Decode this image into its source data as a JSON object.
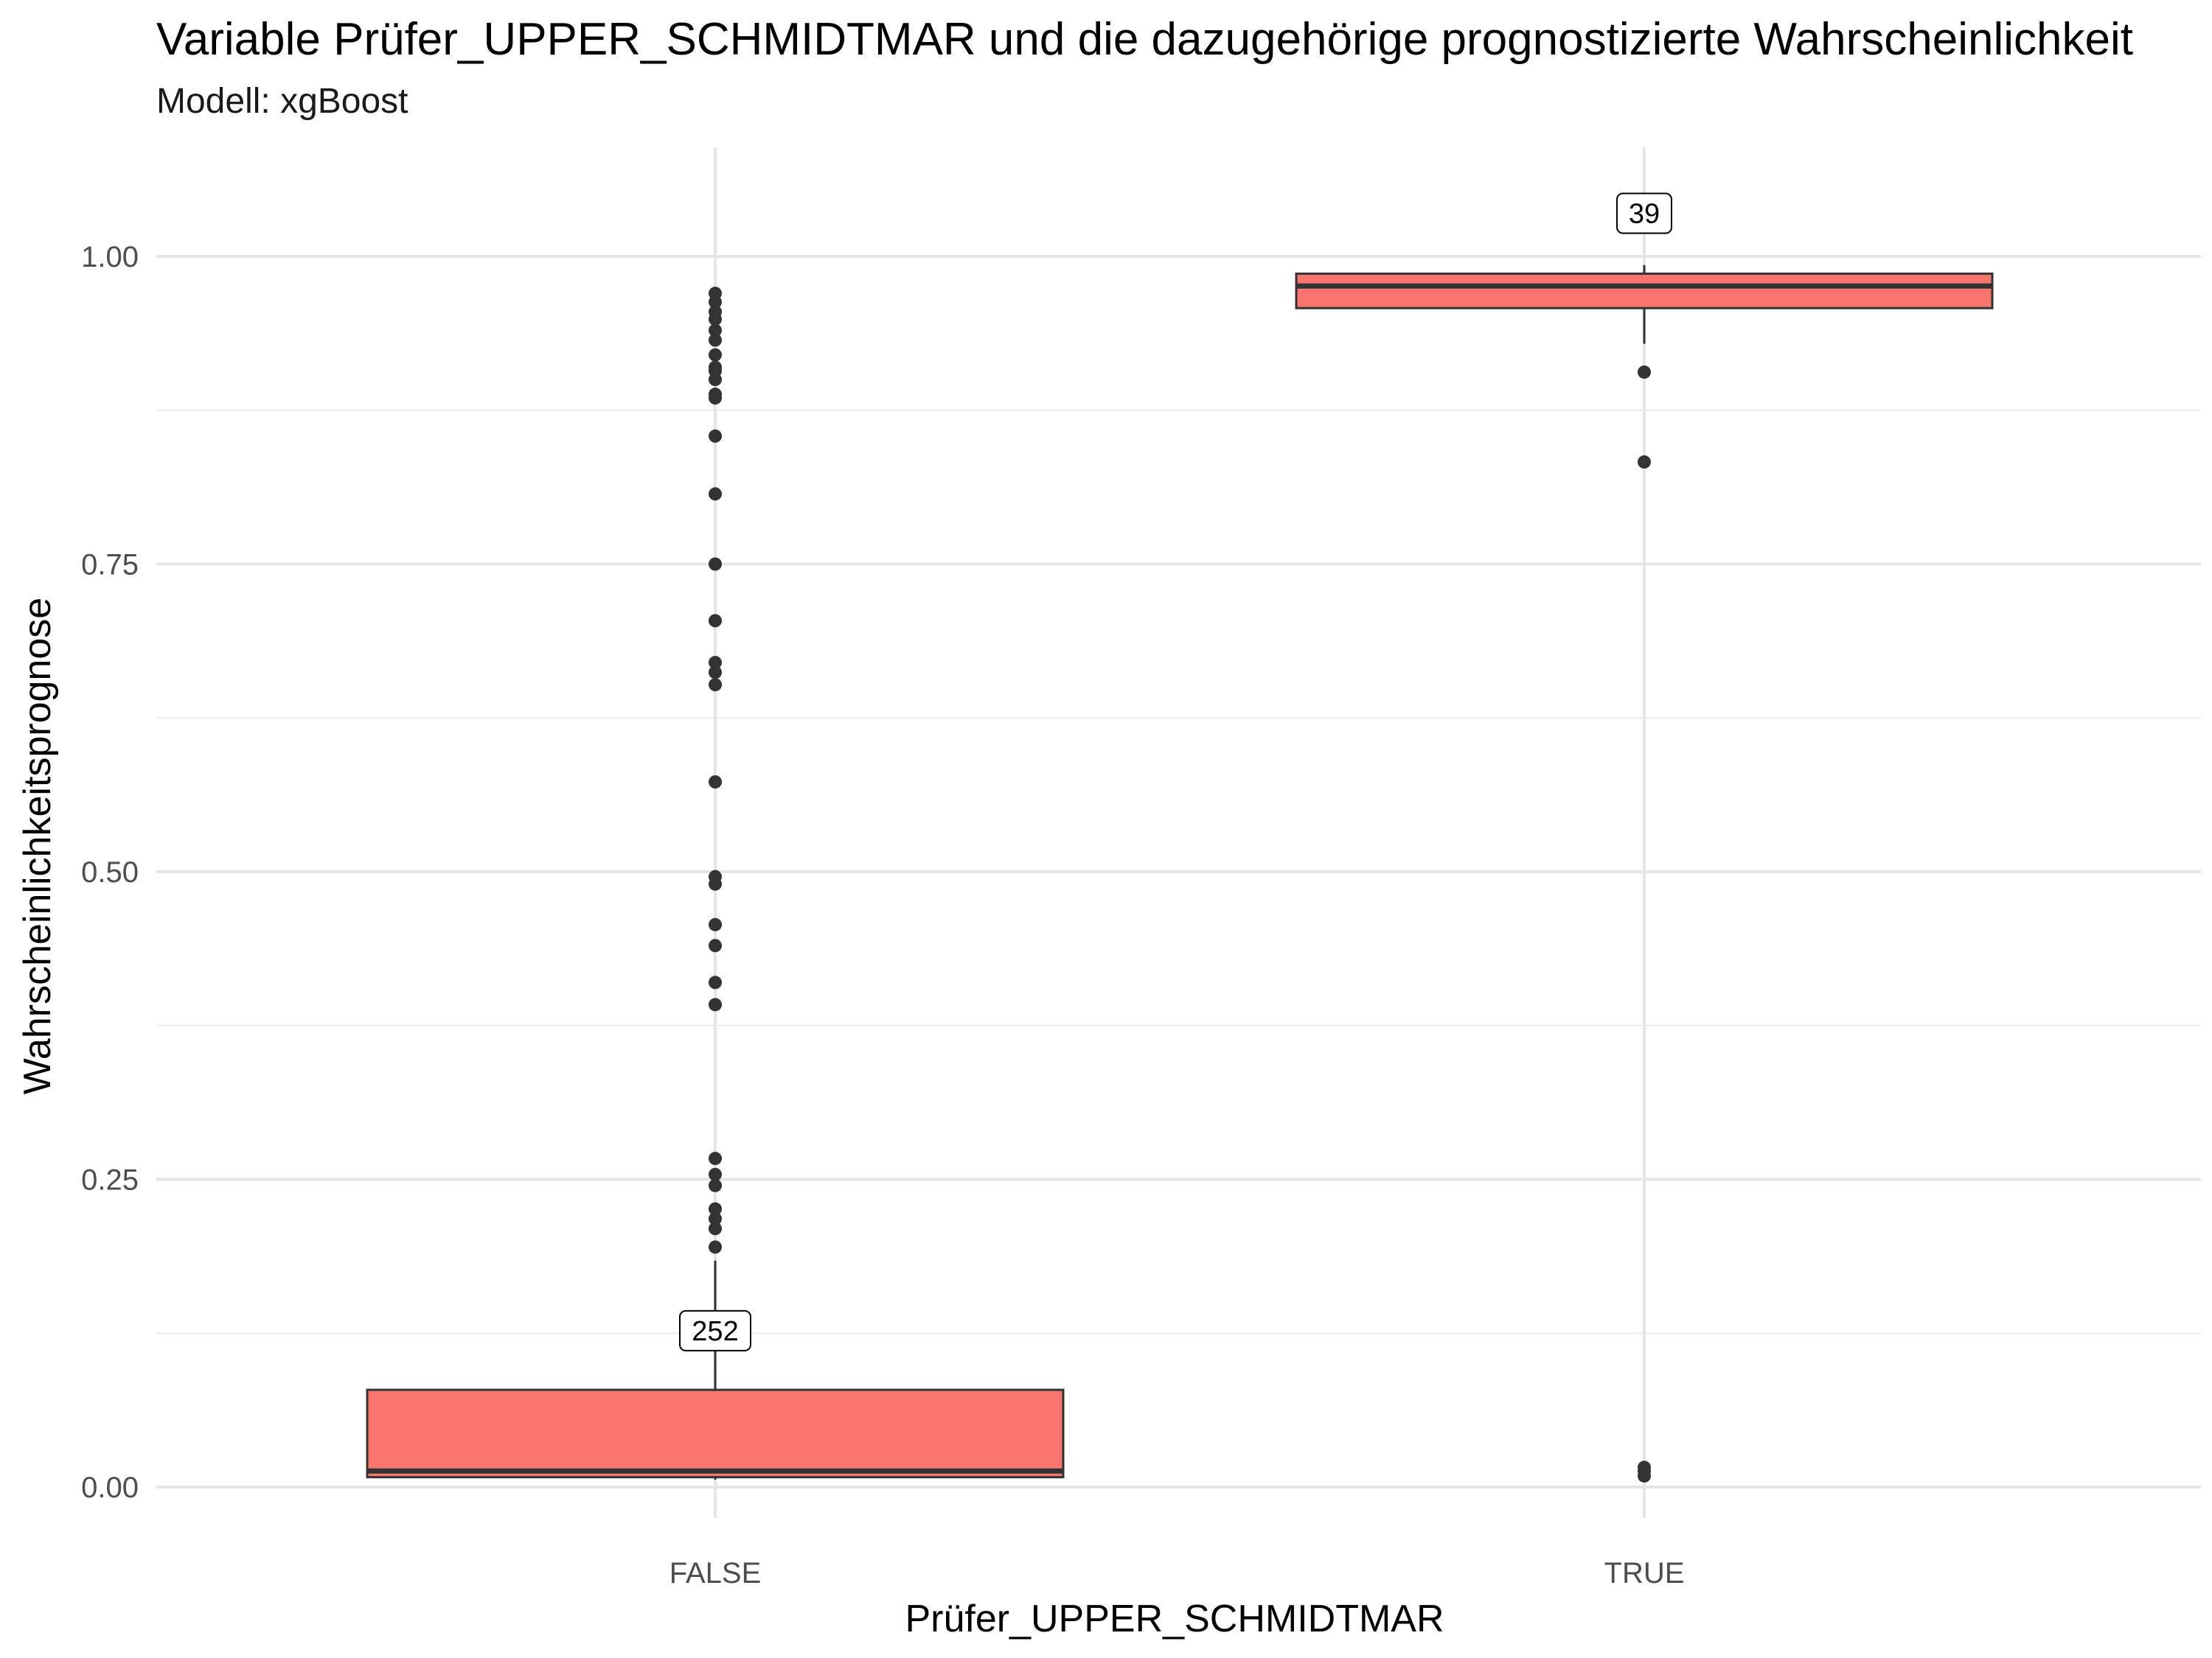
{
  "chart_data": {
    "type": "boxplot",
    "title": "Variable Prüfer_UPPER_SCHMIDTMAR und die dazugehörige prognostizierte Wahrscheinlichkeit",
    "subtitle": "Modell: xgBoost",
    "xlabel": "Prüfer_UPPER_SCHMIDTMAR",
    "ylabel": "Wahrscheinlichkeitsprognose",
    "ylim": [
      -0.05,
      1.09
    ],
    "yticks": [
      0.0,
      0.25,
      0.5,
      0.75,
      1.0
    ],
    "ytick_labels": [
      "0.00",
      "0.25",
      "0.50",
      "0.75",
      "1.00"
    ],
    "grid": true,
    "fill_color": "#F8766D",
    "categories": [
      "FALSE",
      "TRUE"
    ],
    "boxes": [
      {
        "category": "FALSE",
        "count_label": "252",
        "label_y": 0.127,
        "min": 0.006,
        "q1": 0.008,
        "median": 0.013,
        "q3": 0.079,
        "max": 0.184,
        "outliers": [
          0.195,
          0.21,
          0.218,
          0.226,
          0.245,
          0.254,
          0.267,
          0.392,
          0.41,
          0.44,
          0.457,
          0.49,
          0.496,
          0.573,
          0.652,
          0.662,
          0.67,
          0.704,
          0.75,
          0.807,
          0.854,
          0.885,
          0.888,
          0.9,
          0.907,
          0.91,
          0.92,
          0.932,
          0.94,
          0.949,
          0.955,
          0.963,
          0.97
        ]
      },
      {
        "category": "TRUE",
        "count_label": "39",
        "label_y": 1.035,
        "min": 0.929,
        "q1": 0.958,
        "median": 0.976,
        "q3": 0.986,
        "max": 0.993,
        "outliers": [
          0.906,
          0.833,
          0.016,
          0.013,
          0.009
        ]
      }
    ]
  }
}
